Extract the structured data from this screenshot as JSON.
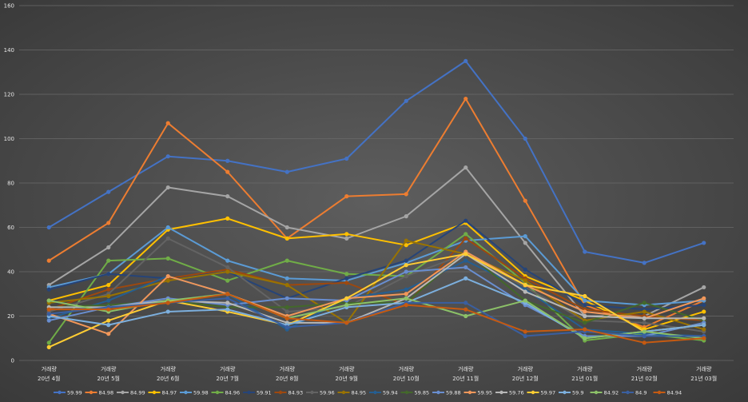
{
  "chart_data": {
    "type": "line",
    "title": "",
    "xlabel": "",
    "ylabel": "",
    "ylim": [
      0,
      160
    ],
    "yticks": [
      "0",
      "20",
      "40",
      "60",
      "80",
      "100",
      "120",
      "140",
      "160"
    ],
    "grid": true,
    "legend_position": "bottom",
    "categories": [
      {
        "top": "거래량",
        "bottom": "20년 4월"
      },
      {
        "top": "거래량",
        "bottom": "20년 5월"
      },
      {
        "top": "거래량",
        "bottom": "20년 6월"
      },
      {
        "top": "거래량",
        "bottom": "20년 7월"
      },
      {
        "top": "거래량",
        "bottom": "20년 8월"
      },
      {
        "top": "거래량",
        "bottom": "20년 9월"
      },
      {
        "top": "거래량",
        "bottom": "20년 10월"
      },
      {
        "top": "거래량",
        "bottom": "20년 11월"
      },
      {
        "top": "거래량",
        "bottom": "20년 12월"
      },
      {
        "top": "거래량",
        "bottom": "21년 01월"
      },
      {
        "top": "거래량",
        "bottom": "21년 02월"
      },
      {
        "top": "거래량",
        "bottom": "21년 03월"
      }
    ],
    "series": [
      {
        "name": "59.99",
        "color": "#4472C4",
        "values": [
          60,
          76,
          92,
          90,
          85,
          91,
          117,
          135,
          100,
          49,
          44,
          53
        ]
      },
      {
        "name": "84.98",
        "color": "#ED7D31",
        "values": [
          45,
          62,
          107,
          85,
          55,
          74,
          75,
          118,
          72,
          25,
          15,
          27
        ]
      },
      {
        "name": "84.99",
        "color": "#A5A5A5",
        "values": [
          34,
          51,
          78,
          74,
          60,
          55,
          65,
          87,
          53,
          20,
          20,
          33
        ]
      },
      {
        "name": "84.97",
        "color": "#FFC000",
        "values": [
          27,
          34,
          59,
          64,
          55,
          57,
          52,
          62,
          38,
          27,
          14,
          22
        ]
      },
      {
        "name": "59.98",
        "color": "#5B9BD5",
        "values": [
          33,
          39,
          60,
          45,
          37,
          36,
          44,
          54,
          56,
          27,
          25,
          27
        ]
      },
      {
        "name": "84.96",
        "color": "#70AD47",
        "values": [
          8,
          45,
          46,
          36,
          45,
          39,
          38,
          57,
          35,
          9,
          12,
          9
        ]
      },
      {
        "name": "59.91",
        "color": "#264478",
        "values": [
          32,
          39,
          37,
          40,
          28,
          37,
          45,
          63,
          41,
          25,
          23,
          25
        ]
      },
      {
        "name": "84.93",
        "color": "#9E480E",
        "values": [
          23,
          32,
          37,
          41,
          34,
          35,
          25,
          55,
          37,
          23,
          20,
          18
        ]
      },
      {
        "name": "59.96",
        "color": "#636363",
        "values": [
          22,
          30,
          55,
          42,
          22,
          24,
          38,
          48,
          33,
          18,
          17,
          13
        ]
      },
      {
        "name": "84.95",
        "color": "#997300",
        "values": [
          26,
          29,
          36,
          40,
          34,
          17,
          54,
          48,
          36,
          18,
          22,
          14
        ]
      },
      {
        "name": "59.94",
        "color": "#255E91",
        "values": [
          19,
          27,
          38,
          30,
          14,
          28,
          32,
          45,
          32,
          14,
          12,
          11
        ]
      },
      {
        "name": "59.85",
        "color": "#43682B",
        "values": [
          24,
          25,
          27,
          24,
          24,
          26,
          26,
          49,
          27,
          17,
          26,
          18
        ]
      },
      {
        "name": "59.88",
        "color": "#698ED0",
        "values": [
          18,
          24,
          28,
          25,
          28,
          27,
          40,
          42,
          25,
          11,
          11,
          17
        ]
      },
      {
        "name": "59.95",
        "color": "#F1975A",
        "values": [
          21,
          12,
          38,
          30,
          20,
          28,
          30,
          49,
          34,
          22,
          19,
          28
        ]
      },
      {
        "name": "59.76",
        "color": "#B7B7B7",
        "values": [
          24,
          24,
          27,
          26,
          17,
          17,
          28,
          48,
          31,
          20,
          19,
          19
        ]
      },
      {
        "name": "59.97",
        "color": "#FFCD33",
        "values": [
          6,
          18,
          27,
          22,
          16,
          28,
          43,
          48,
          34,
          29,
          13,
          16
        ]
      },
      {
        "name": "59.9",
        "color": "#7CAFDD",
        "values": [
          20,
          16,
          22,
          23,
          16,
          24,
          26,
          37,
          26,
          10,
          13,
          16
        ]
      },
      {
        "name": "84.92",
        "color": "#8CC168",
        "values": [
          27,
          22,
          27,
          30,
          19,
          25,
          28,
          20,
          27,
          10,
          13,
          10
        ]
      },
      {
        "name": "84.9",
        "color": "#3A5FA0",
        "values": [
          21,
          24,
          26,
          28,
          15,
          17,
          26,
          26,
          11,
          13,
          11,
          11
        ]
      },
      {
        "name": "84.94",
        "color": "#C55A11",
        "values": [
          23,
          23,
          26,
          30,
          19,
          17,
          25,
          23,
          13,
          14,
          8,
          10
        ]
      }
    ]
  }
}
